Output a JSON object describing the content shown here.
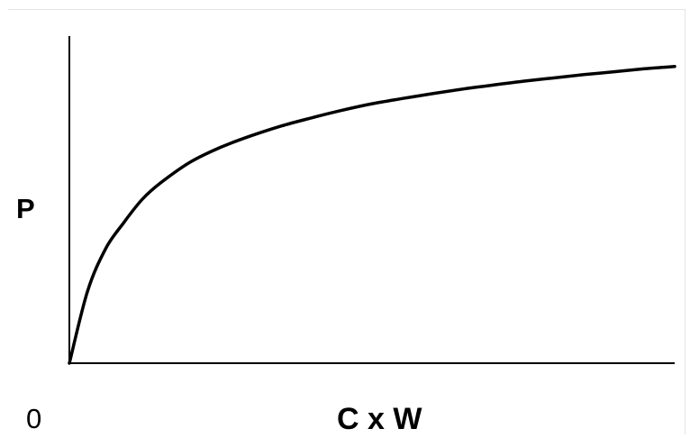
{
  "chart_data": {
    "type": "line",
    "title": "",
    "xlabel": "C x W",
    "ylabel": "P",
    "origin_label": "0",
    "xlim": [
      0,
      100
    ],
    "ylim": [
      0,
      100
    ],
    "grid": false,
    "legend": "none",
    "axis_ticks": false,
    "line_color": "#000000",
    "series": [
      {
        "x": [
          0,
          3,
          6,
          9,
          12,
          15,
          20,
          25,
          30,
          35,
          40,
          45,
          50,
          55,
          60,
          65,
          70,
          75,
          80,
          85,
          90,
          95,
          100
        ],
        "y": [
          0,
          22,
          35,
          43,
          50,
          55,
          61.5,
          66,
          69.5,
          72.5,
          75,
          77.3,
          79.3,
          80.9,
          82.4,
          83.8,
          85,
          86.2,
          87.2,
          88.2,
          89.1,
          90,
          90.7
        ]
      }
    ]
  }
}
